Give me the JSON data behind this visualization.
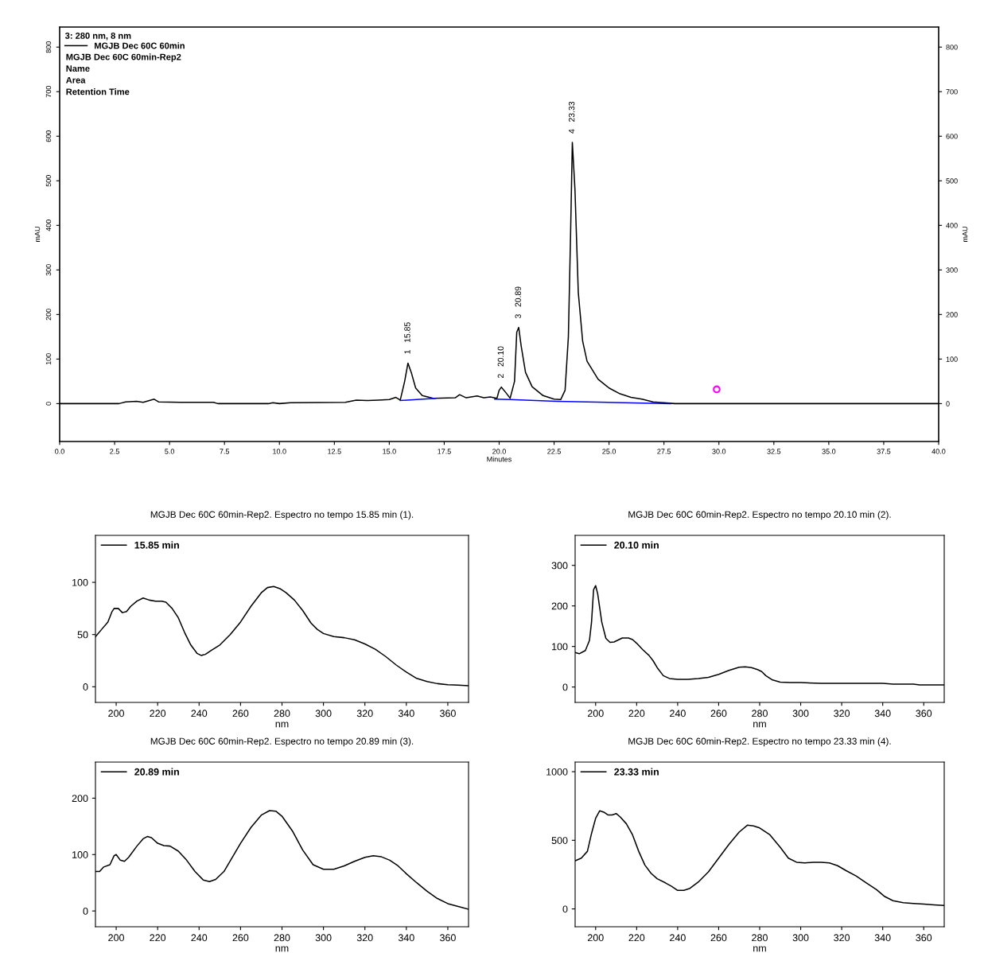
{
  "chart_data": [
    {
      "type": "line",
      "xlabel": "Minutes",
      "ylabel": "mAU",
      "y2label": "mAU",
      "legend_title": "3: 280 nm, 8 nm",
      "legend": "top left",
      "xlim": [
        0,
        40
      ],
      "xticks": [
        {
          "value": 0,
          "label": "0.0"
        },
        2.5,
        {
          "value": 5,
          "label": "5.0"
        },
        7.5,
        {
          "value": 10,
          "label": "10.0"
        },
        12.5,
        {
          "value": 15,
          "label": "15.0"
        },
        17.5,
        {
          "value": 20,
          "label": "20.0"
        },
        22.5,
        {
          "value": 25,
          "label": "25.0"
        },
        27.5,
        {
          "value": 30,
          "label": "30.0"
        },
        32.5,
        {
          "value": 35,
          "label": "35.0"
        },
        37.5,
        {
          "value": 40,
          "label": "40.0"
        }
      ],
      "ylim": [
        -85,
        845
      ],
      "yticks": [
        0,
        100,
        200,
        300,
        400,
        500,
        600,
        700,
        800
      ],
      "y2lim": [
        -85,
        845
      ],
      "y2ticks": [
        0,
        100,
        200,
        300,
        400,
        500,
        600,
        700,
        800
      ],
      "annotations": [
        "MGJB Dec 60C 60min-Rep2",
        "Name",
        "Area",
        "Retention Time",
        {
          "text": "1   15.85",
          "x": 15.85,
          "y": 91
        },
        {
          "text": "2   20.10",
          "x": 20.1,
          "y": 37
        },
        {
          "text": "3   20.89",
          "x": 20.89,
          "y": 171
        },
        {
          "text": "4   23.33",
          "x": 23.33,
          "y": 586
        }
      ],
      "series": [
        {
          "name": "MGJB Dec 60C 60min",
          "color": "#000000",
          "x": [
            0,
            2.7,
            3.0,
            3.5,
            3.8,
            4.3,
            4.5,
            5.5,
            7.0,
            7.2,
            9.5,
            9.7,
            10.0,
            10.5,
            13.0,
            13.5,
            14.0,
            14.5,
            15.0,
            15.3,
            15.5,
            15.7,
            15.85,
            16.0,
            16.2,
            16.5,
            17.0,
            18.0,
            18.2,
            18.5,
            19.0,
            19.3,
            19.6,
            19.9,
            20.0,
            20.1,
            20.3,
            20.5,
            20.7,
            20.8,
            20.89,
            21.0,
            21.2,
            21.5,
            22.0,
            22.5,
            22.8,
            23.0,
            23.15,
            23.25,
            23.33,
            23.45,
            23.6,
            23.8,
            24.0,
            24.5,
            25.0,
            25.5,
            26.0,
            26.5,
            27.0,
            27.5,
            28.0,
            40.0
          ],
          "values": [
            0,
            0,
            4,
            5,
            3,
            10,
            4,
            3,
            3,
            0,
            0,
            2,
            0,
            2,
            3,
            8,
            7,
            8,
            9,
            14,
            8,
            50,
            91,
            70,
            35,
            18,
            12,
            13,
            20,
            13,
            17,
            13,
            15,
            12,
            30,
            37,
            25,
            12,
            50,
            160,
            171,
            130,
            70,
            38,
            18,
            10,
            9,
            30,
            150,
            380,
            586,
            480,
            250,
            140,
            95,
            55,
            35,
            22,
            14,
            10,
            4,
            2,
            0,
            0
          ]
        },
        {
          "color": "#0000ff",
          "x": [
            15.5,
            17.1,
            17.2,
            19.8,
            20.5,
            22.6,
            27.8
          ],
          "values": [
            7,
            12,
            null,
            10,
            9,
            5,
            0
          ]
        },
        {
          "type": "scatter",
          "color": "#ff00ff",
          "marker": "circle",
          "x": [
            29.9
          ],
          "values": [
            32
          ]
        }
      ]
    },
    {
      "type": "line",
      "title": "MGJB Dec 60C 60min-Rep2. Espectro no tempo 15.85 min (1).",
      "xlabel": "nm",
      "legend": "top left",
      "xlim": [
        190,
        370
      ],
      "xticks": [
        200,
        220,
        240,
        260,
        280,
        300,
        320,
        340,
        360
      ],
      "ylim": [
        -15,
        145
      ],
      "yticks": [
        0,
        50,
        100
      ],
      "series": [
        {
          "name": "15.85 min",
          "color": "#000000",
          "x": [
            190,
            193,
            196,
            198,
            199,
            201,
            203,
            205,
            207,
            210,
            213,
            216,
            219,
            222,
            224,
            227,
            230,
            233,
            236,
            239,
            241,
            243,
            246,
            250,
            255,
            260,
            265,
            270,
            273,
            276,
            279,
            282,
            286,
            290,
            294,
            297,
            300,
            305,
            310,
            315,
            320,
            325,
            330,
            335,
            340,
            345,
            350,
            355,
            360,
            365,
            370
          ],
          "values": [
            48,
            55,
            62,
            72,
            75,
            75,
            71,
            72,
            77,
            82,
            85,
            83,
            82,
            82,
            81,
            75,
            66,
            52,
            40,
            32,
            30,
            31,
            35,
            40,
            50,
            62,
            77,
            90,
            95,
            96,
            94,
            90,
            83,
            73,
            61,
            55,
            51,
            48,
            47,
            45,
            41,
            36,
            29,
            21,
            14,
            8,
            5,
            3,
            2,
            1.5,
            1
          ]
        }
      ]
    },
    {
      "type": "line",
      "title": "MGJB Dec 60C 60min-Rep2. Espectro no tempo 20.10 min (2).",
      "xlabel": "nm",
      "legend": "top left",
      "xlim": [
        190,
        370
      ],
      "xticks": [
        200,
        220,
        240,
        260,
        280,
        300,
        320,
        340,
        360
      ],
      "ylim": [
        -38,
        374
      ],
      "yticks": [
        0,
        100,
        200,
        300
      ],
      "series": [
        {
          "name": "20.10 min",
          "color": "#000000",
          "x": [
            190,
            192,
            195,
            197,
            198,
            199,
            200,
            201,
            203,
            205,
            207,
            209,
            211,
            213,
            216,
            218,
            220,
            223,
            226,
            228,
            230,
            233,
            236,
            240,
            245,
            250,
            255,
            260,
            265,
            270,
            273,
            276,
            279,
            281,
            283,
            286,
            290,
            295,
            300,
            310,
            320,
            330,
            340,
            345,
            350,
            355,
            358,
            370
          ],
          "values": [
            85,
            82,
            90,
            115,
            160,
            240,
            250,
            230,
            160,
            120,
            110,
            111,
            116,
            121,
            121,
            117,
            108,
            92,
            78,
            65,
            48,
            28,
            21,
            19,
            19,
            21,
            24,
            31,
            41,
            49,
            50,
            48,
            43,
            38,
            28,
            18,
            12,
            11,
            11,
            9,
            9,
            9,
            9,
            7,
            7,
            7,
            5,
            5
          ]
        }
      ]
    },
    {
      "type": "line",
      "title": "MGJB Dec 60C 60min-Rep2. Espectro no tempo 20.89 min (3).",
      "xlabel": "nm",
      "legend": "top left",
      "xlim": [
        190,
        370
      ],
      "xticks": [
        200,
        220,
        240,
        260,
        280,
        300,
        320,
        340,
        360
      ],
      "ylim": [
        -28,
        264
      ],
      "yticks": [
        0,
        100,
        200
      ],
      "series": [
        {
          "name": "20.89 min",
          "color": "#000000",
          "x": [
            190,
            192,
            194,
            197,
            199,
            200,
            202,
            204,
            206,
            210,
            213,
            215,
            217,
            220,
            223,
            226,
            230,
            234,
            238,
            242,
            245,
            248,
            252,
            256,
            260,
            265,
            270,
            274,
            277,
            280,
            285,
            290,
            295,
            300,
            305,
            310,
            315,
            320,
            324,
            328,
            332,
            336,
            340,
            345,
            350,
            355,
            360,
            365,
            370
          ],
          "values": [
            70,
            70,
            78,
            82,
            98,
            100,
            90,
            88,
            95,
            115,
            128,
            132,
            130,
            120,
            116,
            115,
            106,
            90,
            70,
            55,
            52,
            56,
            70,
            95,
            120,
            148,
            170,
            178,
            177,
            168,
            142,
            108,
            82,
            74,
            74,
            80,
            88,
            95,
            98,
            96,
            90,
            80,
            66,
            50,
            35,
            22,
            13,
            8,
            3
          ]
        }
      ]
    },
    {
      "type": "line",
      "title": "MGJB Dec 60C 60min-Rep2. Espectro no tempo 23.33 min (4).",
      "xlabel": "nm",
      "legend": "top left",
      "xlim": [
        190,
        370
      ],
      "xticks": [
        200,
        220,
        240,
        260,
        280,
        300,
        320,
        340,
        360
      ],
      "ylim": [
        -130,
        1070
      ],
      "yticks": [
        0,
        500,
        1000
      ],
      "series": [
        {
          "name": "23.33 min",
          "color": "#000000",
          "x": [
            190,
            193,
            196,
            198,
            200,
            202,
            204,
            206,
            208,
            210,
            212,
            215,
            218,
            221,
            224,
            227,
            230,
            234,
            237,
            240,
            243,
            246,
            250,
            255,
            260,
            265,
            270,
            274,
            277,
            280,
            285,
            290,
            294,
            298,
            302,
            306,
            310,
            314,
            318,
            322,
            327,
            332,
            337,
            341,
            345,
            350,
            355,
            360,
            365,
            370
          ],
          "values": [
            350,
            370,
            420,
            550,
            660,
            715,
            705,
            685,
            685,
            695,
            670,
            620,
            540,
            420,
            320,
            260,
            220,
            190,
            165,
            135,
            135,
            150,
            195,
            270,
            370,
            470,
            560,
            610,
            605,
            590,
            540,
            450,
            370,
            340,
            335,
            340,
            340,
            335,
            315,
            280,
            240,
            190,
            140,
            90,
            60,
            45,
            40,
            35,
            30,
            25
          ]
        }
      ]
    }
  ]
}
